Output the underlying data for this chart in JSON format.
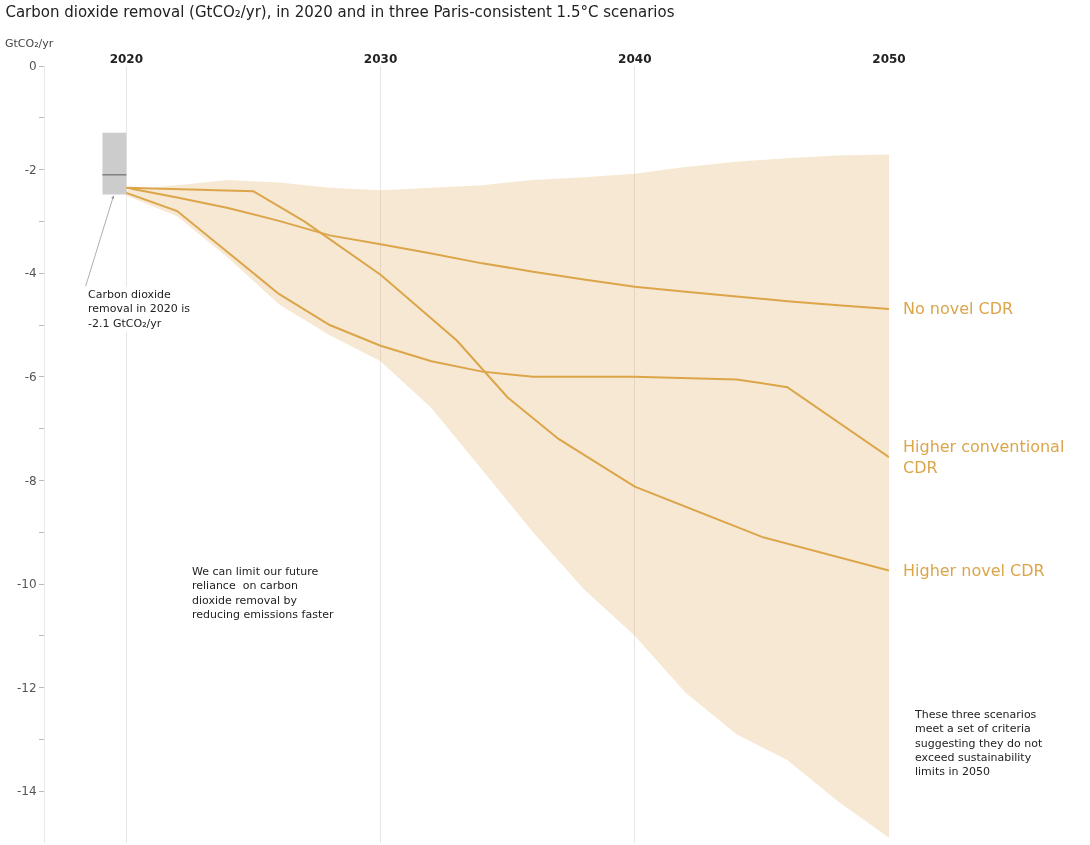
{
  "chart_data": {
    "type": "line",
    "title": "Carbon dioxide removal (GtCO₂/yr), in 2020 and in three Paris-consistent 1.5°C scenarios",
    "ylabel": "GtCO₂/yr",
    "xlim": [
      2016.8,
      2050
    ],
    "xticks": [
      2020,
      2030,
      2040,
      2050
    ],
    "ylim": [
      -15,
      0
    ],
    "yticks": [
      0,
      {
        "value": -1,
        "label": null
      },
      -2,
      {
        "value": -3,
        "label": null
      },
      -4,
      {
        "value": -5,
        "label": null
      },
      -6,
      {
        "value": -7,
        "label": null
      },
      -8,
      {
        "value": -9,
        "label": null
      },
      -10,
      {
        "value": -11,
        "label": null
      },
      -12,
      {
        "value": -13,
        "label": null
      },
      -14
    ],
    "grid": "x",
    "legend": false,
    "series": [
      {
        "name": "No novel CDR",
        "color": "#dca54a",
        "x": [
          2020,
          2022,
          2024,
          2026,
          2028,
          2030,
          2032,
          2034,
          2036,
          2038,
          2040,
          2042,
          2044,
          2046,
          2048,
          2050
        ],
        "values": [
          -2.35,
          -2.54,
          -2.74,
          -2.99,
          -3.27,
          -3.44,
          -3.62,
          -3.81,
          -3.97,
          -4.12,
          -4.26,
          -4.36,
          -4.45,
          -4.54,
          -4.62,
          -4.69
        ],
        "lower": [
          -2.5,
          -2.9,
          -3.7,
          -4.6,
          -5.2,
          -5.7,
          -6.6,
          -7.8,
          -9.0,
          -10.1,
          -11.0,
          -12.1,
          -12.9,
          -13.4,
          -14.2,
          -14.9
        ],
        "upper": [
          -2.4,
          -2.3,
          -2.2,
          -2.25,
          -2.35,
          -2.4,
          -2.35,
          -2.3,
          -2.2,
          -2.15,
          -2.08,
          -1.95,
          -1.85,
          -1.78,
          -1.73,
          -1.71
        ]
      },
      {
        "type": "bar",
        "color": "#cccccc",
        "x": [
          2019.53
        ],
        "base": [
          -2.48
        ],
        "values": [
          1.19
        ]
      },
      {
        "color": "#808080",
        "x": [
          2019.06,
          2020
        ],
        "values": [
          -2.1,
          -2.1
        ]
      },
      {
        "name": "Higher conventional CDR",
        "color": "#dca54a",
        "x": [
          2020,
          2022,
          2024,
          2026,
          2028,
          2030,
          2032,
          2034,
          2036,
          2040,
          2044,
          2046,
          2050
        ],
        "values": [
          -2.45,
          -2.8,
          -3.6,
          -4.4,
          -5.0,
          -5.4,
          -5.7,
          -5.9,
          -6.0,
          -6.0,
          -6.05,
          -6.2,
          -7.55
        ]
      },
      {
        "name": "Higher novel CDR",
        "color": "#dca54a",
        "x": [
          2020,
          2025,
          2027,
          2030,
          2033,
          2035,
          2037,
          2040,
          2045,
          2050
        ],
        "values": [
          -2.35,
          -2.42,
          -3.0,
          -4.03,
          -5.3,
          -6.4,
          -7.2,
          -8.12,
          -9.09,
          -9.74
        ]
      }
    ],
    "annotations": [
      {
        "text": "Carbon dioxide removal in 2020 is -2.1 GtCO₂/yr",
        "x": 2019.5,
        "y": -2.5
      },
      "We can limit our future reliance  on carbon dioxide removal by reducing emissions faster",
      "These three scenarios meet a set of criteria suggesting they do not exceed sustainability limits in 2050"
    ]
  }
}
